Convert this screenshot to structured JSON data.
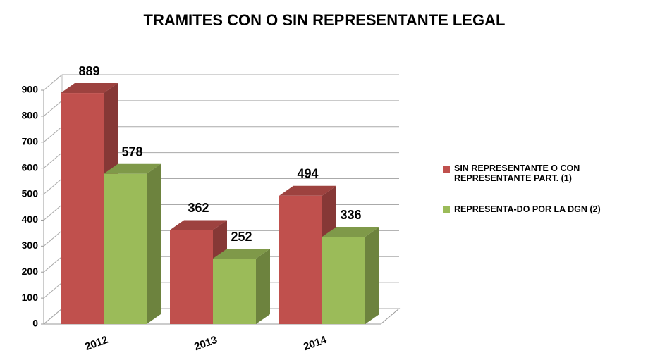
{
  "chart_data": {
    "type": "bar3d",
    "title": "TRAMITES CON O SIN REPRESENTANTE LEGAL",
    "categories": [
      "2012",
      "2013",
      "2014"
    ],
    "series": [
      {
        "name": "SIN REPRESENTANTE O CON REPRESENTANTE PART. (1)",
        "color": "#c0504d",
        "values": [
          889,
          362,
          494
        ]
      },
      {
        "name": "REPRESENTA-DO POR LA DGN (2)",
        "color": "#9bbb59",
        "values": [
          578,
          252,
          336
        ]
      }
    ],
    "ylim": [
      0,
      900
    ],
    "yticks": [
      0,
      100,
      200,
      300,
      400,
      500,
      600,
      700,
      800,
      900
    ],
    "grid": true,
    "legend": "right"
  }
}
